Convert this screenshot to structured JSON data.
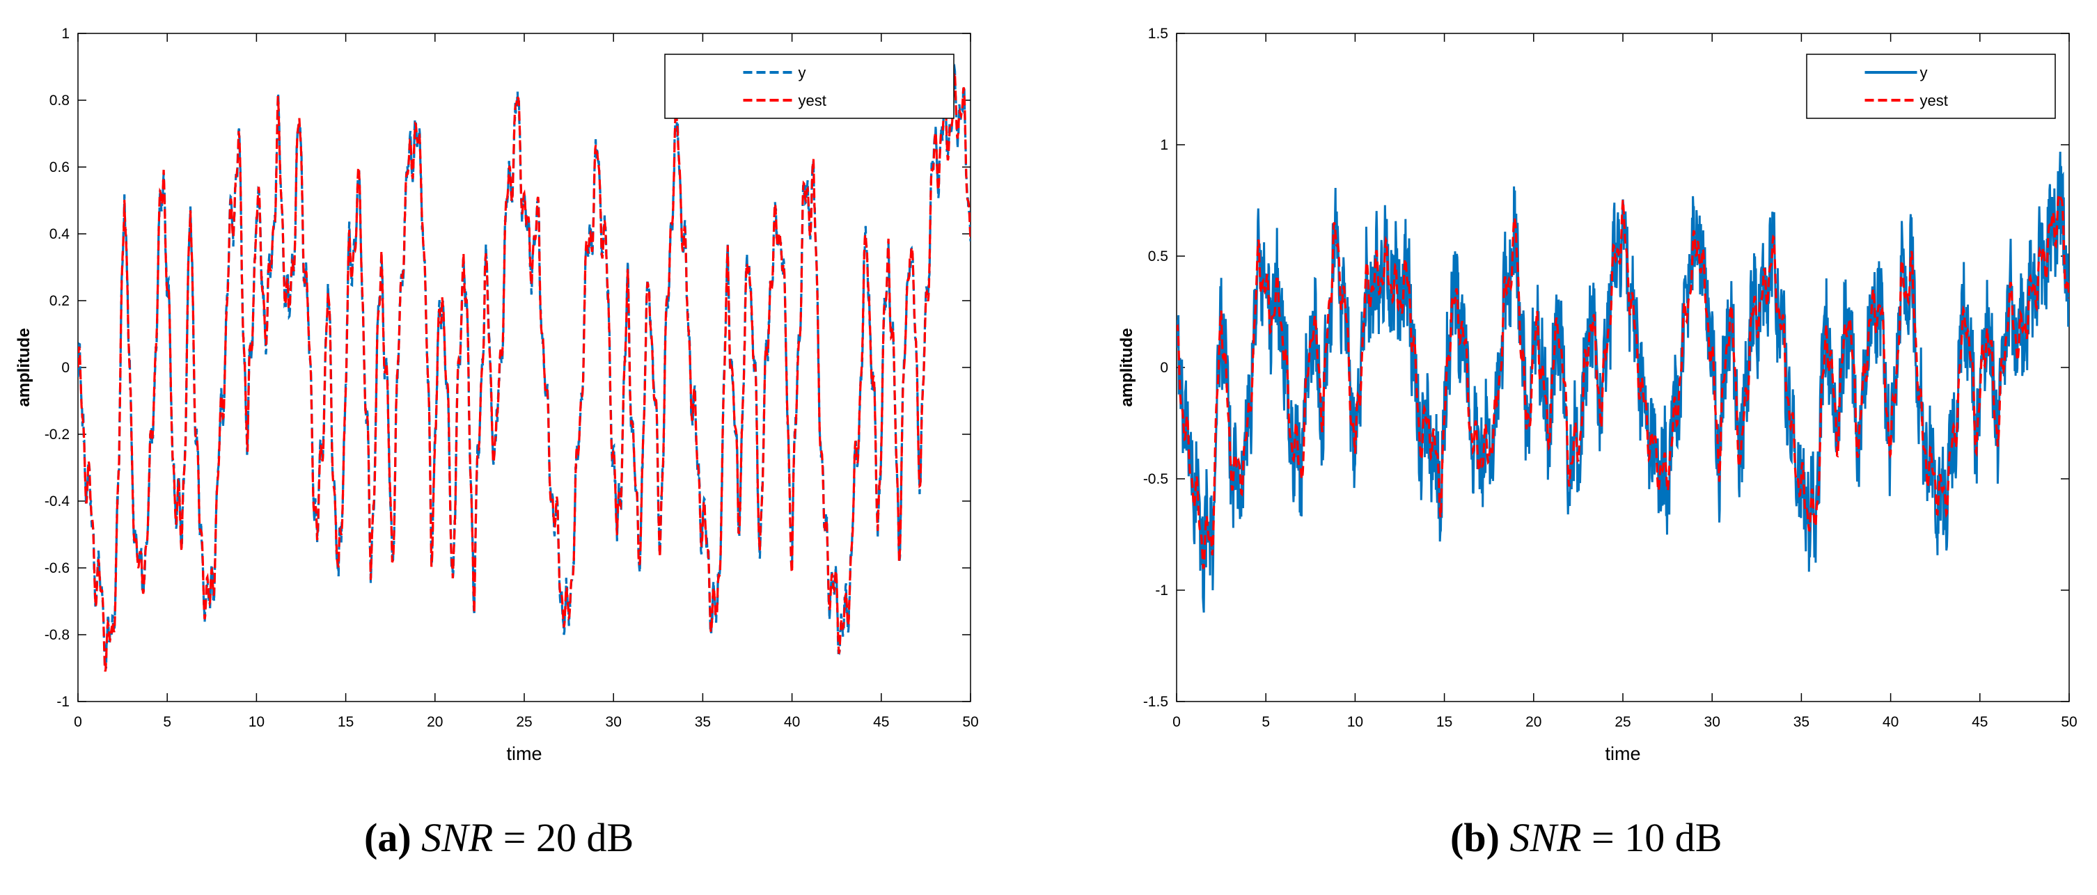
{
  "chart_data": [
    {
      "type": "line",
      "id": "a",
      "title": "",
      "caption": {
        "tag": "(a)",
        "var": "SNR",
        "rest": " = 20 dB"
      },
      "xlabel": "time",
      "ylabel": "amplitude",
      "xlim": [
        0,
        50
      ],
      "ylim": [
        -1,
        1
      ],
      "xticks": [
        0,
        5,
        10,
        15,
        20,
        25,
        30,
        35,
        40,
        45,
        50
      ],
      "xtick_labels": [
        "0",
        "5",
        "10",
        "15",
        "20",
        "25",
        "30",
        "35",
        "40",
        "45",
        "50"
      ],
      "yticks": [
        -1,
        -0.8,
        -0.6,
        -0.4,
        -0.2,
        0,
        0.2,
        0.4,
        0.6,
        0.8,
        1
      ],
      "ytick_labels": [
        "-1",
        "-0.8",
        "-0.6",
        "-0.4",
        "-0.2",
        "0",
        "0.2",
        "0.4",
        "0.6",
        "0.8",
        "1"
      ],
      "legend": "top-right",
      "grid": false,
      "noise": 0.03,
      "series": [
        {
          "name": "y",
          "color": "#0072BD",
          "style": "dashed"
        },
        {
          "name": "yest",
          "color": "#FF0000",
          "style": "dashed"
        }
      ],
      "envelope_points": [
        [
          0,
          0.0
        ],
        [
          0.4,
          -0.25
        ],
        [
          0.9,
          -0.55
        ],
        [
          1.4,
          -0.75
        ],
        [
          1.9,
          -0.87
        ],
        [
          2.3,
          -0.3
        ],
        [
          2.6,
          0.62
        ],
        [
          3.0,
          -0.3
        ],
        [
          3.5,
          -0.68
        ],
        [
          4.0,
          -0.4
        ],
        [
          4.5,
          0.3
        ],
        [
          4.8,
          0.62
        ],
        [
          5.3,
          -0.25
        ],
        [
          5.8,
          -0.55
        ],
        [
          6.3,
          0.45
        ],
        [
          6.8,
          -0.5
        ],
        [
          7.4,
          -0.75
        ],
        [
          7.9,
          -0.3
        ],
        [
          8.6,
          0.45
        ],
        [
          9.0,
          0.65
        ],
        [
          9.5,
          -0.25
        ],
        [
          10.0,
          0.5
        ],
        [
          10.6,
          0.1
        ],
        [
          11.2,
          0.7
        ],
        [
          11.8,
          0.1
        ],
        [
          12.4,
          0.72
        ],
        [
          12.9,
          0.1
        ],
        [
          13.4,
          -0.55
        ],
        [
          14.0,
          0.2
        ],
        [
          14.6,
          -0.7
        ],
        [
          15.2,
          0.3
        ],
        [
          15.8,
          0.5
        ],
        [
          16.4,
          -0.6
        ],
        [
          17.0,
          0.35
        ],
        [
          17.6,
          -0.55
        ],
        [
          18.2,
          0.4
        ],
        [
          18.8,
          0.72
        ],
        [
          19.3,
          0.55
        ],
        [
          19.8,
          -0.5
        ],
        [
          20.4,
          0.3
        ],
        [
          21.0,
          -0.6
        ],
        [
          21.6,
          0.4
        ],
        [
          22.2,
          -0.65
        ],
        [
          22.8,
          0.3
        ],
        [
          23.4,
          -0.3
        ],
        [
          24.0,
          0.45
        ],
        [
          24.6,
          0.78
        ],
        [
          25.2,
          0.35
        ],
        [
          25.8,
          0.4
        ],
        [
          26.3,
          -0.2
        ],
        [
          26.8,
          -0.5
        ],
        [
          27.4,
          -0.8
        ],
        [
          27.9,
          -0.4
        ],
        [
          28.5,
          0.3
        ],
        [
          29.1,
          0.62
        ],
        [
          29.6,
          0.3
        ],
        [
          30.2,
          -0.55
        ],
        [
          30.8,
          0.2
        ],
        [
          31.4,
          -0.6
        ],
        [
          32.0,
          0.3
        ],
        [
          32.6,
          -0.5
        ],
        [
          33.2,
          0.45
        ],
        [
          33.6,
          0.72
        ],
        [
          34.1,
          0.2
        ],
        [
          34.7,
          -0.3
        ],
        [
          35.3,
          -0.6
        ],
        [
          35.8,
          -0.8
        ],
        [
          36.4,
          0.3
        ],
        [
          37.0,
          -0.45
        ],
        [
          37.6,
          0.4
        ],
        [
          38.2,
          -0.5
        ],
        [
          38.8,
          0.3
        ],
        [
          39.4,
          0.45
        ],
        [
          40.0,
          -0.55
        ],
        [
          40.6,
          0.45
        ],
        [
          41.2,
          0.55
        ],
        [
          41.8,
          -0.5
        ],
        [
          42.4,
          -0.7
        ],
        [
          43.0,
          -0.8
        ],
        [
          43.6,
          -0.3
        ],
        [
          44.2,
          0.4
        ],
        [
          44.8,
          -0.45
        ],
        [
          45.4,
          0.4
        ],
        [
          46.0,
          -0.5
        ],
        [
          46.6,
          0.45
        ],
        [
          47.2,
          -0.3
        ],
        [
          47.8,
          0.55
        ],
        [
          48.4,
          0.7
        ],
        [
          49.0,
          0.75
        ],
        [
          49.5,
          0.8
        ],
        [
          50.0,
          0.45
        ]
      ]
    },
    {
      "type": "line",
      "id": "b",
      "title": "",
      "caption": {
        "tag": "(b)",
        "var": "SNR",
        "rest": " = 10 dB"
      },
      "xlabel": "time",
      "ylabel": "amplitude",
      "xlim": [
        0,
        50
      ],
      "ylim": [
        -1.5,
        1.5
      ],
      "xticks": [
        0,
        5,
        10,
        15,
        20,
        25,
        30,
        35,
        40,
        45,
        50
      ],
      "xtick_labels": [
        "0",
        "5",
        "10",
        "15",
        "20",
        "25",
        "30",
        "35",
        "40",
        "45",
        "50"
      ],
      "yticks": [
        -1.5,
        -1,
        -0.5,
        0,
        0.5,
        1,
        1.5
      ],
      "ytick_labels": [
        "-1.5",
        "-1",
        "-0.5",
        "0",
        "0.5",
        "1",
        "1.5"
      ],
      "legend": "top-right",
      "grid": false,
      "noise": 0.22,
      "series": [
        {
          "name": "y",
          "color": "#0072BD",
          "style": "solid"
        },
        {
          "name": "yest",
          "color": "#FF0000",
          "style": "dashed"
        }
      ],
      "envelope_points": [
        [
          0,
          0.1
        ],
        [
          0.5,
          -0.3
        ],
        [
          1.0,
          -0.55
        ],
        [
          1.5,
          -0.8
        ],
        [
          2.0,
          -0.75
        ],
        [
          2.5,
          0.3
        ],
        [
          3.0,
          -0.4
        ],
        [
          3.5,
          -0.5
        ],
        [
          4.0,
          -0.3
        ],
        [
          4.6,
          0.5
        ],
        [
          5.2,
          0.25
        ],
        [
          5.8,
          0.3
        ],
        [
          6.4,
          -0.3
        ],
        [
          7.0,
          -0.45
        ],
        [
          7.6,
          0.25
        ],
        [
          8.2,
          -0.2
        ],
        [
          8.8,
          0.6
        ],
        [
          9.4,
          0.3
        ],
        [
          10.0,
          -0.4
        ],
        [
          10.6,
          0.35
        ],
        [
          11.2,
          0.4
        ],
        [
          11.8,
          0.45
        ],
        [
          12.4,
          0.3
        ],
        [
          13.0,
          0.4
        ],
        [
          13.6,
          -0.3
        ],
        [
          14.2,
          -0.25
        ],
        [
          14.8,
          -0.55
        ],
        [
          15.4,
          0.3
        ],
        [
          16.0,
          0.2
        ],
        [
          16.6,
          -0.35
        ],
        [
          17.2,
          -0.4
        ],
        [
          17.8,
          -0.3
        ],
        [
          18.4,
          0.3
        ],
        [
          19.0,
          0.6
        ],
        [
          19.6,
          -0.3
        ],
        [
          20.2,
          0.2
        ],
        [
          20.8,
          -0.3
        ],
        [
          21.4,
          0.25
        ],
        [
          22.0,
          -0.45
        ],
        [
          22.6,
          -0.3
        ],
        [
          23.2,
          0.25
        ],
        [
          23.8,
          -0.2
        ],
        [
          24.4,
          0.4
        ],
        [
          25.0,
          0.65
        ],
        [
          25.6,
          0.2
        ],
        [
          26.2,
          -0.2
        ],
        [
          26.8,
          -0.4
        ],
        [
          27.4,
          -0.5
        ],
        [
          28.0,
          -0.2
        ],
        [
          28.6,
          0.3
        ],
        [
          29.2,
          0.6
        ],
        [
          29.8,
          0.2
        ],
        [
          30.4,
          -0.4
        ],
        [
          31.0,
          0.3
        ],
        [
          31.6,
          -0.45
        ],
        [
          32.2,
          0.2
        ],
        [
          32.8,
          0.3
        ],
        [
          33.4,
          0.5
        ],
        [
          34.0,
          0.1
        ],
        [
          34.6,
          -0.4
        ],
        [
          35.2,
          -0.6
        ],
        [
          35.8,
          -0.7
        ],
        [
          36.4,
          0.2
        ],
        [
          37.0,
          -0.3
        ],
        [
          37.6,
          0.3
        ],
        [
          38.2,
          -0.35
        ],
        [
          38.8,
          0.2
        ],
        [
          39.4,
          0.3
        ],
        [
          40.0,
          -0.4
        ],
        [
          40.6,
          0.35
        ],
        [
          41.2,
          0.4
        ],
        [
          41.8,
          -0.35
        ],
        [
          42.4,
          -0.5
        ],
        [
          43.0,
          -0.6
        ],
        [
          43.6,
          -0.3
        ],
        [
          44.2,
          0.3
        ],
        [
          44.8,
          -0.3
        ],
        [
          45.4,
          0.2
        ],
        [
          46.0,
          -0.3
        ],
        [
          46.6,
          0.3
        ],
        [
          47.2,
          0.1
        ],
        [
          47.8,
          0.3
        ],
        [
          48.4,
          0.45
        ],
        [
          49.0,
          0.6
        ],
        [
          49.5,
          0.75
        ],
        [
          50.0,
          0.3
        ]
      ]
    }
  ]
}
